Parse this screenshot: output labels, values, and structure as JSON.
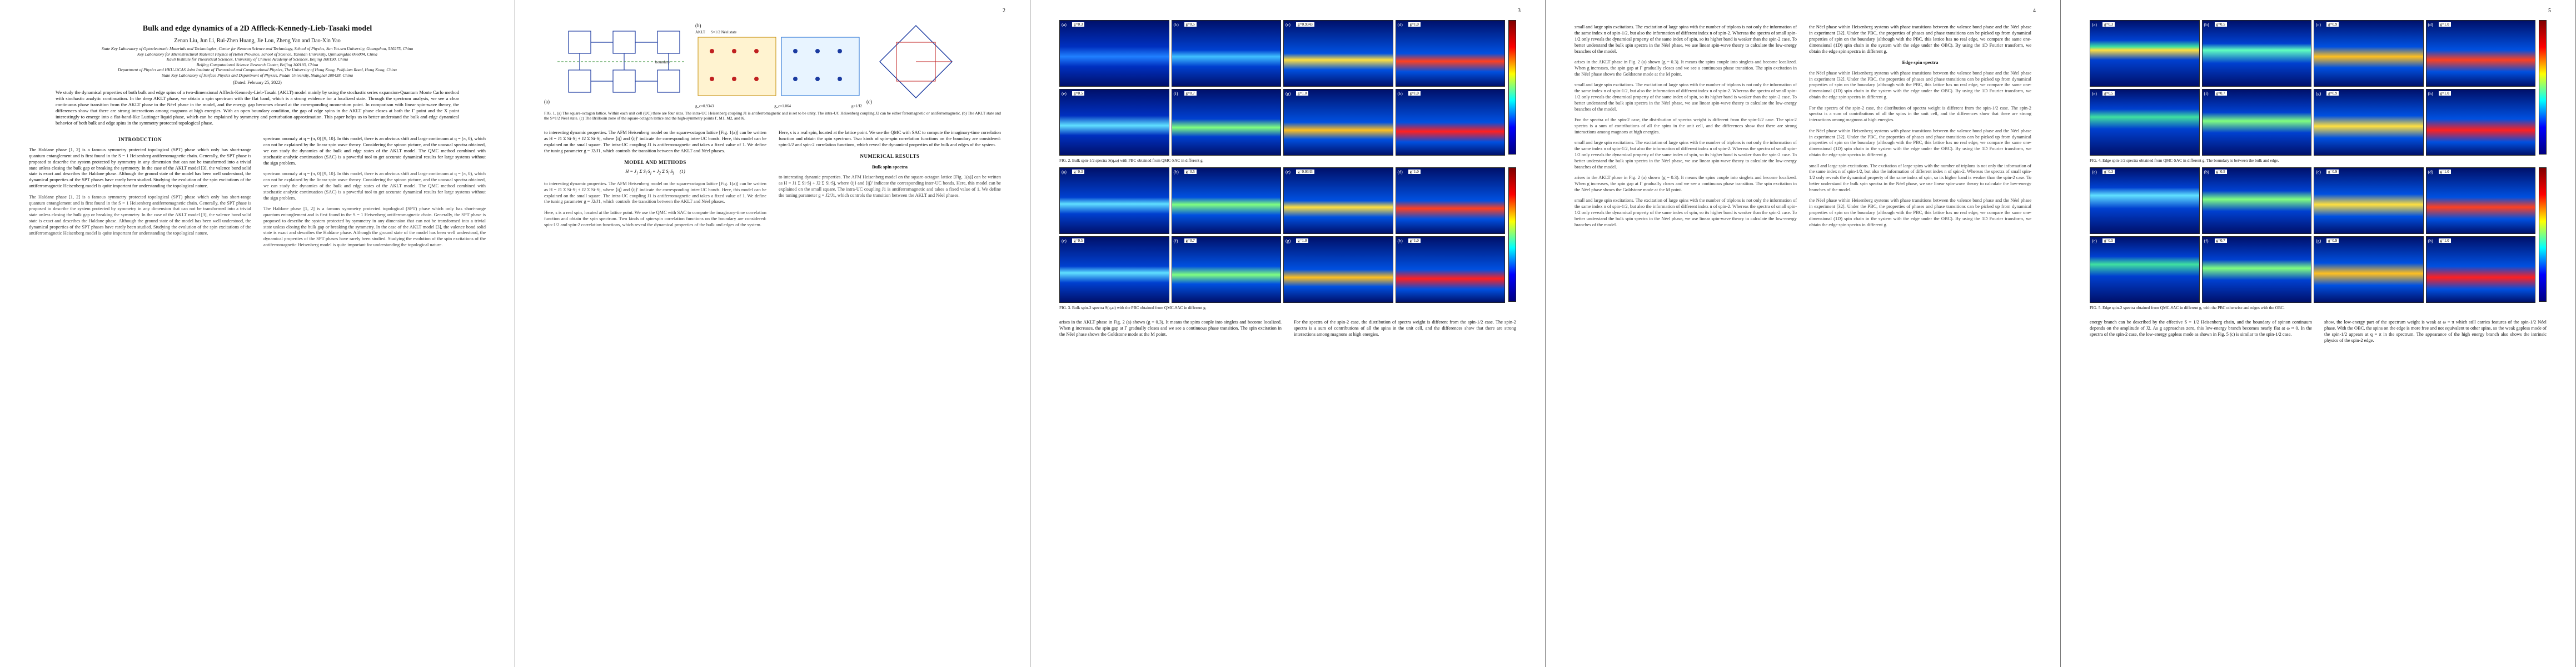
{
  "arxiv_id": "arXiv:2109.10901v2  [cond-mat.str-el]  24 Feb 2022",
  "pages": [
    "",
    "2",
    "3",
    "4",
    "5"
  ],
  "paper": {
    "title": "Bulk and edge dynamics of a 2D Affleck-Kennedy-Lieb-Tasaki model",
    "authors": "Zenan Liu, Jun Li, Rui-Zhen Huang, Jie Lou, Zheng Yan and Dao-Xin Yao",
    "affiliations": [
      "State Key Laboratory of Optoelectronic Materials and Technologies, Center for Neutron Science and Technology, School of Physics, Sun Yat-sen University, Guangzhou, 510275, China",
      "Key Laboratory for Microstructural Material Physics of Hebei Province, School of Science, Yanshan University, Qinhuangdao 066004, China",
      "Kavli Institute for Theoretical Sciences, University of Chinese Academy of Sciences, Beijing 100190, China",
      "Beijing Computational Science Research Center, Beijing 100193, China",
      "Department of Physics and HKU-UCAS Joint Institute of Theoretical and Computational Physics, The University of Hong Kong, Pokfulam Road, Hong Kong, China",
      "State Key Laboratory of Surface Physics and Department of Physics, Fudan University, Shanghai 200438, China"
    ],
    "date": "(Dated: February 25, 2022)",
    "abstract": "We study the dynamical properties of both bulk and edge spins of a two-dimensional Affleck-Kennedy-Lieb-Tasaki (AKLT) model mainly by using the stochastic series expansion-Quantum Monte Carlo method with stochastic analytic continuation. In the deep AKLT phase, we obtain a spin spectrum with the flat band, which is a strong evidence for a localized state. Through the spectrum analysis, we see a clear continuous phase transition from the AKLT phase to the Néel phase in the model, and the energy gap becomes closed at the corresponding momentum point. In comparison with linear spin-wave theory, the differences show that there are strong interactions among magnons at high energies. With an open boundary condition, the gap of edge spins in the AKLT phase closes at both the Γ point and the X point interestingly to emerge into a flat-band-like Luttinger liquid phase, which can be explained by symmetry and perturbation approximation. This paper helps us to better understand the bulk and edge dynamical behavior of both bulk and edge spins in the symmetry protected topological phase."
  },
  "sections": {
    "intro": "INTRODUCTION",
    "model": "MODEL AND METHODS",
    "numerical": "NUMERICAL RESULTS",
    "bulk": "Bulk spin spectra",
    "edge": "Edge spin spectra"
  },
  "captions": {
    "fig1": "FIG. 1. (a) The square-octagon lattice. Within each unit cell (UC) there are four sites. The intra-UC Heisenberg coupling J1 is antiferromagnetic and is set to be unity. The intra-UC Heisenberg coupling J2 can be either ferromagnetic or antiferromagnetic. (b) The AKLT state and the S=1/2 Néel state. (c) The Brillouin zone of the square-octagon lattice and the high-symmetry points Γ, M1, M2, and K.",
    "fig2": "FIG. 2. Bulk spin-1/2 spectra S(q,ω) with PBC obtained from QMC-SAC in different g.",
    "fig3": "FIG. 3. Bulk spin-2 spectra S(q,ω) with the PBC obtained from QMC-SAC in different g.",
    "fig4": "FIG. 4. Edge spin-1/2 spectra obtained from QMC-SAC in different g. The boundary is between the bulk and edge.",
    "fig5": "FIG. 5. Edge spin-2 spectra obtained from QMC-SAC in different g, with the PBC otherwise and edges with the OBC."
  },
  "figure_labels": {
    "fig1_panels": [
      "(a)",
      "(b)",
      "(c)"
    ],
    "fig1_boundary": "boundary",
    "fig1_aklt": "AKLT",
    "fig1_neel": "S=1/2 Néel state",
    "fig1_gvals": [
      "g_c=0.9343",
      "g_c=1.064",
      "g=1/J2"
    ],
    "bz_points": [
      "Γ",
      "M1",
      "M2",
      "K"
    ],
    "grid_g_p2": [
      "g=0.3",
      "g=0.5",
      "g=0.9343",
      "g=1.0",
      "g=0.5",
      "g=0.7",
      "g=1.0",
      "g=1.0"
    ],
    "grid_g_p4": [
      "g=0.3",
      "g=0.5",
      "g=0.9",
      "g=1.0",
      "g=0.5",
      "g=0.7",
      "g=0.9",
      "g=1.0"
    ],
    "panel_tags": [
      "(a)",
      "(b)",
      "(c)",
      "(d)",
      "(e)",
      "(f)",
      "(g)",
      "(h)"
    ]
  },
  "text": {
    "p1_left": "The Haldane phase [1, 2] is a famous symmetry protected topological (SPT) phase which only has short-range quantum entanglement and is first found in the S = 1 Heisenberg antiferromagnetic chain. Generally, the SPT phase is proposed to describe the system protected by symmetry in any dimension that can not be transformed into a trivial state unless closing the bulk gap or breaking the symmetry. In the case of the AKLT model [3], the valence bond solid state is exact and describes the Haldane phase. Although the ground state of the model has been well understood, the dynamical properties of the SPT phases have rarely been studied. Studying the evolution of the spin excitations of the antiferromagnetic Heisenberg model is quite important for understanding the topological nature.",
    "p1_right": "spectrum anomaly at q = (π, 0) [9, 10]. In this model, there is an obvious shift and large continuum at q = (π, 0), which can not be explained by the linear spin wave theory. Considering the spinon picture, and the unusual spectra obtained, we can study the dynamics of the bulk and edge states of the AKLT model. The QMC method combined with stochastic analytic continuation (SAC) is a powerful tool to get accurate dynamical results for large systems without the sign problem.",
    "p2_left": "to interesting dynamic properties. The AFM Heisenberg model on the square-octagon lattice [Fig. 1(a)] can be written as H = J1 Σ Si·Sj + J2 Σ Si·Sj, where ⟨ij⟩ and ⟨ij⟩′ indicate the corresponding inter-UC bonds. Here, this model can be explained on the small square. The intra-UC coupling J1 is antiferromagnetic and takes a fixed value of 1. We define the tuning parameter g = J2/J1, which controls the transition between the AKLT and Néel phases.",
    "p2_right": "Here, s is a real spin, located at the lattice point. We use the QMC with SAC to compute the imaginary-time correlation function and obtain the spin spectrum. Two kinds of spin-spin correlation functions on the boundary are considered: spin-1/2 and spin-2 correlation functions, which reveal the dynamical properties of the bulk and edges of the system.",
    "p3_left": "arises in the AKLT phase in Fig. 2 (a) shown (g = 0.3). It means the spins couple into singlets and become localized. When g increases, the spin gap at Γ gradually closes and we see a continuous phase transition. The spin excitation in the Néel phase shows the Goldstone mode at the M point.",
    "p3_right": "For the spectra of the spin-2 case, the distribution of spectra weight is different from the spin-1/2 case. The spin-2 spectra is a sum of contributions of all the spins in the unit cell, and the differences show that there are strong interactions among magnons at high energies.",
    "p4_left": "small and large spin excitations. The excitation of large spins with the number of triplons is not only the information of the same index n of spin-1/2, but also the information of different index n of spin-2. Whereas the spectra of small spin-1/2 only reveals the dynamical property of the same index of spin, so its higher band is weaker than the spin-2 case. To better understand the bulk spin spectra in the Néel phase, we use linear spin-wave theory to calculate the low-energy branches of the model.",
    "p4_right": "the Néel phase within Heisenberg systems with phase transitions between the valence bond phase and the Néel phase in experiment [32]. Under the PBC, the properties of phases and phase transitions can be picked up from dynamical properties of spin on the boundary (although with the PBC, this lattice has no real edge, we compare the same one-dimensional (1D) spin chain in the system with the edge under the OBC). By using the 1D Fourier transform, we obtain the edge spin spectra in different g.",
    "p5_left": "energy branch can be described by the effective S = 1/2 Heisenberg chain, and the boundary of spinon continuum depends on the amplitude of J2. As g approaches zero, this low-energy branch becomes nearly flat at ω ≈ 0. In the spectra of the spin-2 case, the low-energy gapless mode as shown in Fig. 5 (c) is similar to the spin-1/2 case.",
    "p5_right": "show, the low-energy part of the spectrum weight is weak at ω = π which still carries features of the spin-1/2 Néel phase. With the OBC, the spins on the edge is more free and not equivalent to other spins, so the weak gapless mode of the spin-1/2 appears at q = π in the spectrum. The appearance of the high energy branch also shows the intrinsic physics of the spin-2 edge."
  }
}
